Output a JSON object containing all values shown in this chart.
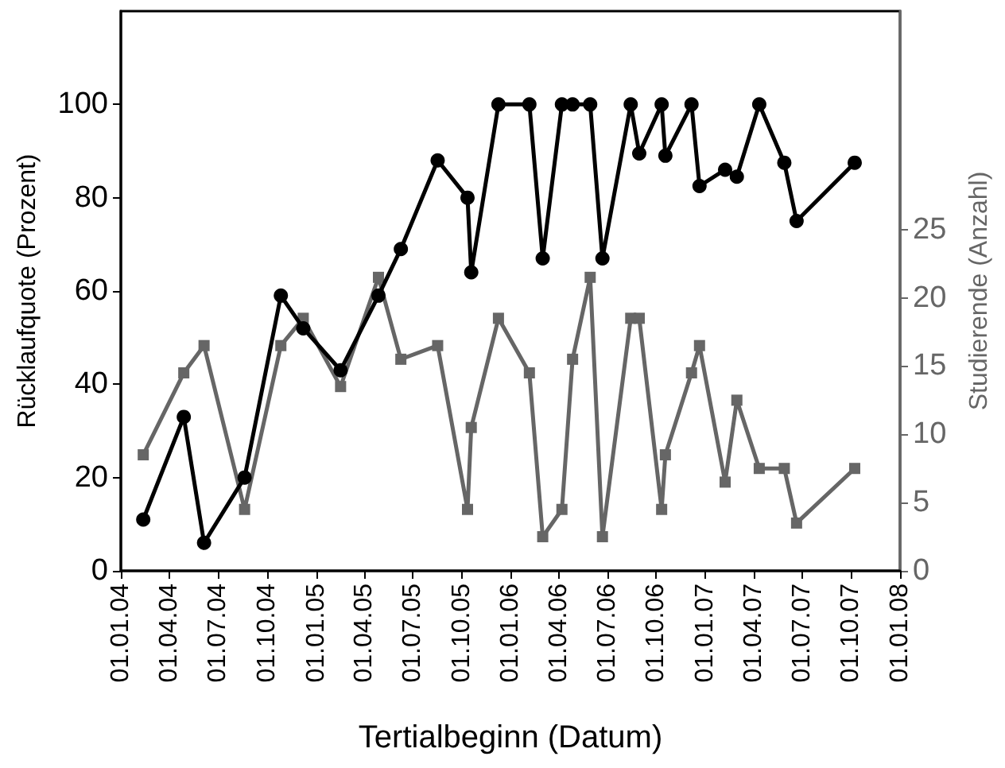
{
  "chart_data": {
    "type": "line",
    "xlabel": "Tertialbeginn (Datum)",
    "ylabel": "Rücklaufquote (Prozent)",
    "y2label": "Studierende (Anzahl)",
    "x": [
      "2004-02-12",
      "2004-04-28",
      "2004-06-05",
      "2004-08-20",
      "2004-10-27",
      "2004-12-08",
      "2005-02-16",
      "2005-04-28",
      "2005-06-09",
      "2005-08-17",
      "2005-10-12",
      "2005-10-19",
      "2005-12-09",
      "2006-02-05",
      "2006-03-02",
      "2006-04-07",
      "2006-04-27",
      "2006-05-30",
      "2006-06-22",
      "2006-08-14",
      "2006-08-30",
      "2006-10-11",
      "2006-10-18",
      "2006-12-06",
      "2006-12-21",
      "2007-02-07",
      "2007-03-01",
      "2007-04-12",
      "2007-05-29",
      "2007-06-21",
      "2007-10-08"
    ],
    "series": [
      {
        "color": "#000000",
        "marker": "circle",
        "values": [
          11,
          33,
          6,
          20,
          59,
          52,
          43,
          59,
          69,
          88,
          80,
          64,
          100,
          100,
          67,
          100,
          100,
          100,
          67,
          100,
          89.5,
          100,
          89,
          100,
          82.5,
          86,
          84.5,
          100,
          87.5,
          75,
          87.5
        ]
      },
      {
        "color": "#666666",
        "marker": "square",
        "axis": "y2",
        "values": [
          8.5,
          14.5,
          16.5,
          4.5,
          16.5,
          18.5,
          13.5,
          21.5,
          15.5,
          16.5,
          4.5,
          10.5,
          18.5,
          14.5,
          2.5,
          4.5,
          15.5,
          21.5,
          2.5,
          18.5,
          18.5,
          4.5,
          8.5,
          14.5,
          16.5,
          6.5,
          12.5,
          7.5,
          7.5,
          3.5,
          7.5
        ]
      }
    ],
    "xlim": [
      "2004-01-01",
      "2008-01-01"
    ],
    "xticks": [
      {
        "value": "2004-01-01",
        "label": "01.01.04"
      },
      {
        "value": "2004-04-01",
        "label": "01.04.04"
      },
      {
        "value": "2004-07-01",
        "label": "01.07.04"
      },
      {
        "value": "2004-10-01",
        "label": "01.10.04"
      },
      {
        "value": "2005-01-01",
        "label": "01.01.05"
      },
      {
        "value": "2005-04-01",
        "label": "01.04.05"
      },
      {
        "value": "2005-07-01",
        "label": "01.07.05"
      },
      {
        "value": "2005-10-01",
        "label": "01.10.05"
      },
      {
        "value": "2006-01-01",
        "label": "01.01.06"
      },
      {
        "value": "2006-04-01",
        "label": "01.04.06"
      },
      {
        "value": "2006-07-01",
        "label": "01.07.06"
      },
      {
        "value": "2006-10-01",
        "label": "01.10.06"
      },
      {
        "value": "2007-01-01",
        "label": "01.01.07"
      },
      {
        "value": "2007-04-01",
        "label": "01.04.07"
      },
      {
        "value": "2007-07-01",
        "label": "01.07.07"
      },
      {
        "value": "2007-10-01",
        "label": "01.10.07"
      },
      {
        "value": "2008-01-01",
        "label": "01.01.08"
      }
    ],
    "ylim": [
      0,
      120
    ],
    "yticks": [
      0,
      20,
      40,
      60,
      80,
      100
    ],
    "y2lim": [
      0,
      41
    ],
    "y2ticks": [
      0,
      5,
      10,
      15,
      20,
      25
    ],
    "grid": false,
    "line_style": "solid"
  }
}
